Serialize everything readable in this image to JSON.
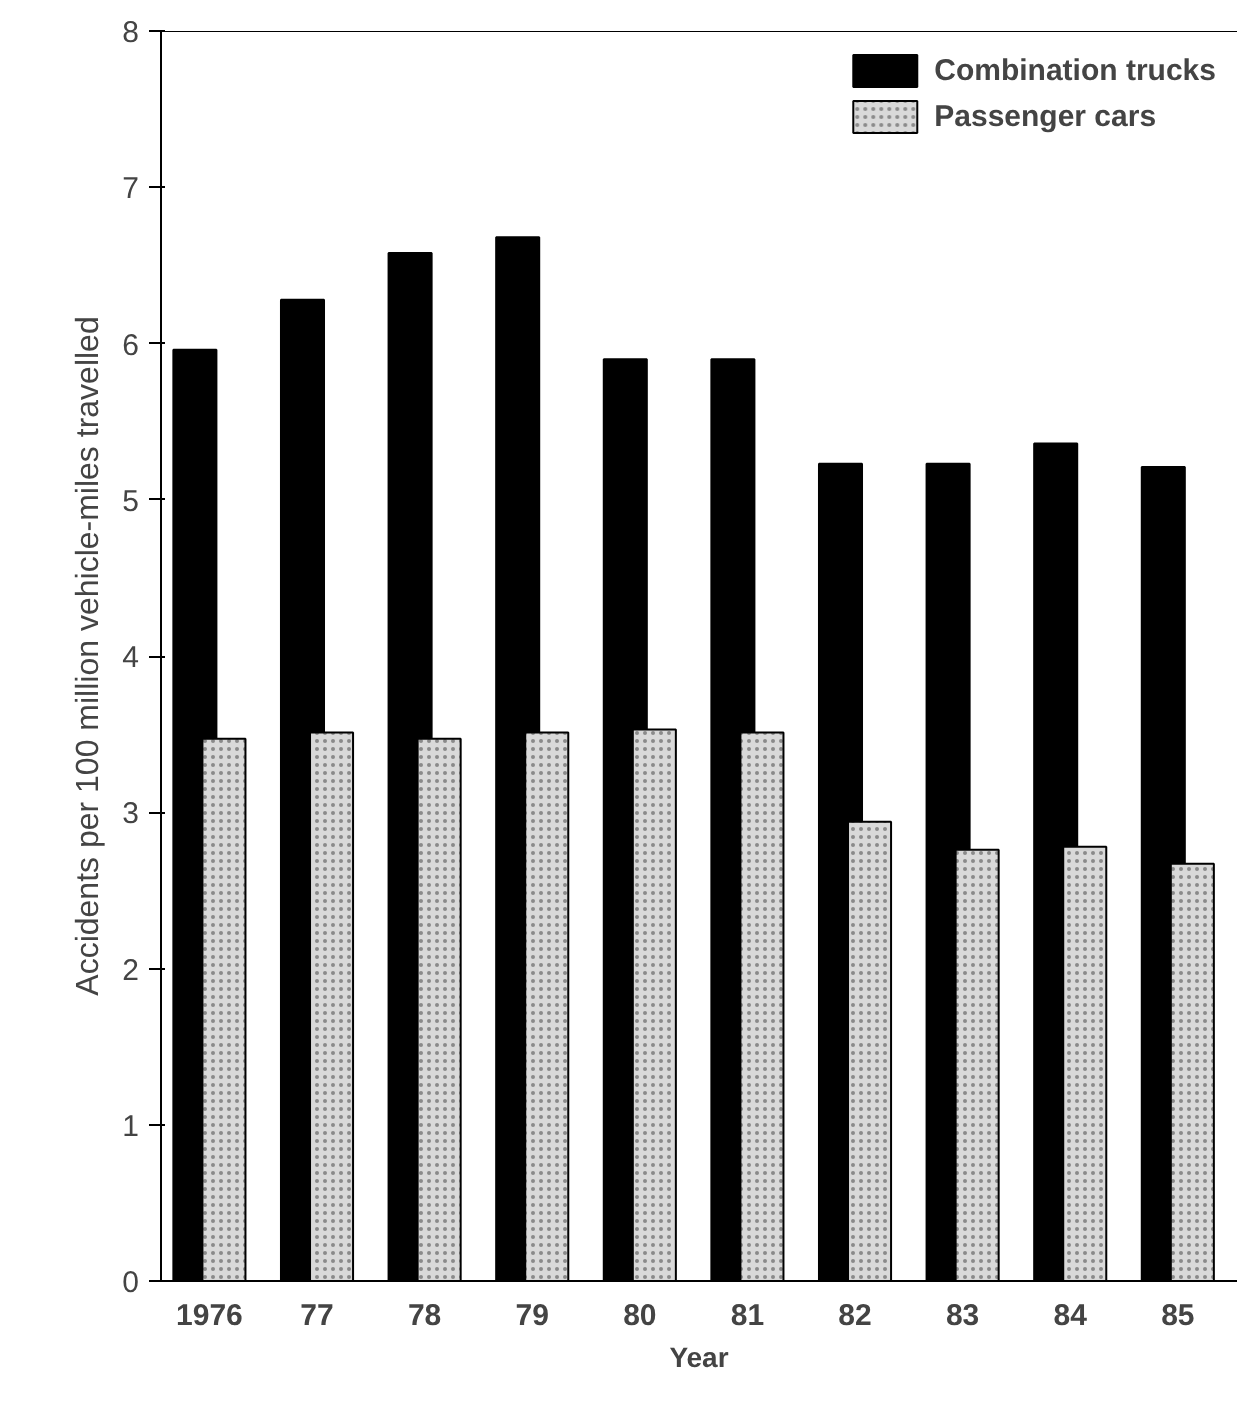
{
  "chart_data": {
    "type": "bar",
    "xlabel": "Year",
    "ylabel": "Accidents per 100 million vehicle-miles travelled",
    "categories": [
      "1976",
      "77",
      "78",
      "79",
      "80",
      "81",
      "82",
      "83",
      "84",
      "85"
    ],
    "series": [
      {
        "name": "Combination trucks",
        "color": "#000000",
        "values": [
          5.96,
          6.28,
          6.58,
          6.68,
          5.9,
          5.9,
          5.23,
          5.23,
          5.36,
          5.21
        ]
      },
      {
        "name": "Passenger cars",
        "color": "#d9d9d9",
        "values": [
          3.47,
          3.51,
          3.47,
          3.51,
          3.53,
          3.51,
          2.94,
          2.76,
          2.78,
          2.67
        ]
      }
    ],
    "ylim": [
      0,
      8
    ],
    "yticks": [
      0,
      1,
      2,
      3,
      4,
      5,
      6,
      7,
      8
    ],
    "grid": false,
    "legend": "top right"
  }
}
